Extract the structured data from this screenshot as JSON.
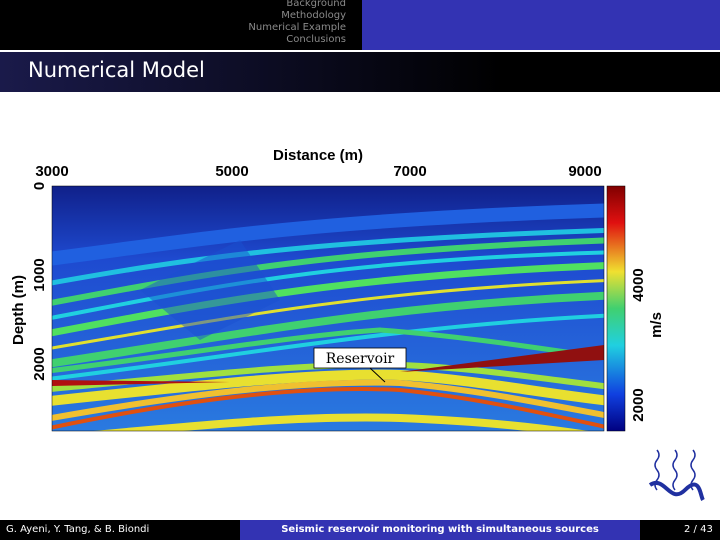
{
  "nav": {
    "items": [
      "Background",
      "Methodology",
      "Numerical Example",
      "Conclusions"
    ]
  },
  "title": "Numerical Model",
  "figure": {
    "x_label": "Distance (m)",
    "x_ticks": [
      3000,
      5000,
      7000,
      9000
    ],
    "y_label": "Depth (m)",
    "y_ticks": [
      0,
      1000,
      2000
    ],
    "colorbar_label": "m/s",
    "colorbar_ticks": [
      4000,
      2000
    ],
    "annotation": "Reservoir"
  },
  "footer": {
    "authors": "G. Ayeni, Y. Tang, & B. Biondi",
    "talk_title": "Seismic reservoir monitoring with simultaneous sources",
    "page": "2 / 43"
  }
}
